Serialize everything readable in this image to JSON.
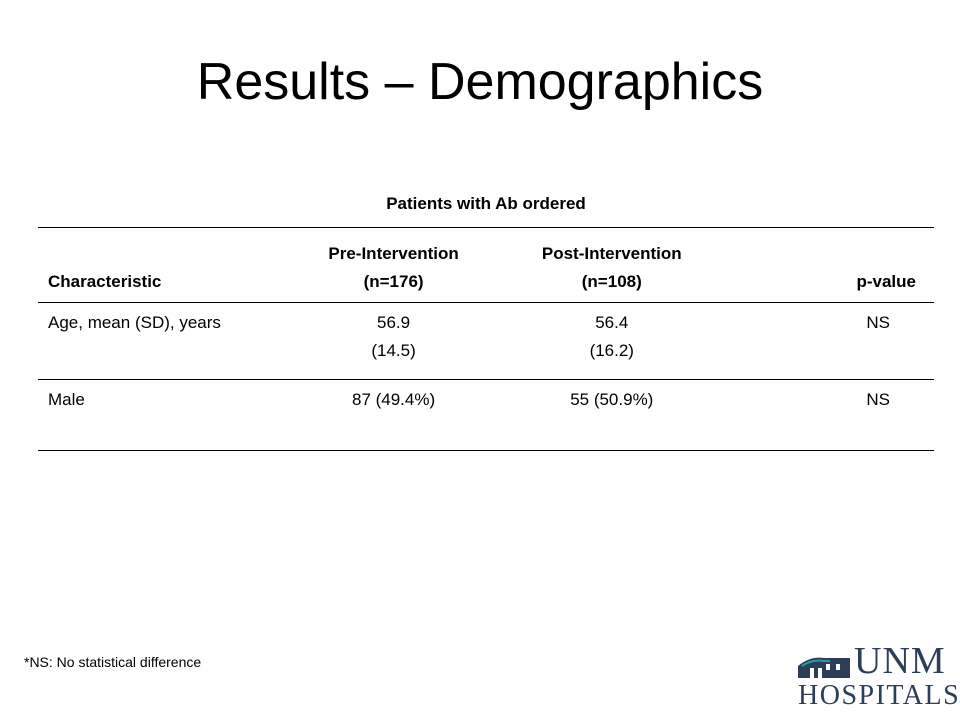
{
  "slide": {
    "title": "Results – Demographics",
    "footnote": "*NS: No statistical difference"
  },
  "table": {
    "group_header": "Patients with Ab ordered",
    "columns": [
      {
        "line1": "Characteristic",
        "line2": ""
      },
      {
        "line1": "Pre-Intervention",
        "line2": "(n=176)"
      },
      {
        "line1": "Post-Intervention",
        "line2": "(n=108)"
      },
      {
        "line1": "p-value",
        "line2": ""
      }
    ],
    "rows": [
      {
        "characteristic": "Age, mean (SD), years",
        "pre": {
          "line1": "56.9",
          "line2": "(14.5)"
        },
        "post": {
          "line1": "56.4",
          "line2": "(16.2)"
        },
        "p_value": "NS"
      },
      {
        "characteristic": "Male",
        "pre": {
          "line1": "87 (49.4%)",
          "line2": ""
        },
        "post": {
          "line1": "55 (50.9%)",
          "line2": ""
        },
        "p_value": "NS"
      }
    ]
  },
  "logo": {
    "line1": "UNM",
    "line2": "HOSPITALS",
    "icon": "building-icon",
    "color": "#2c3e5a",
    "accent": "#2a9aa6"
  }
}
